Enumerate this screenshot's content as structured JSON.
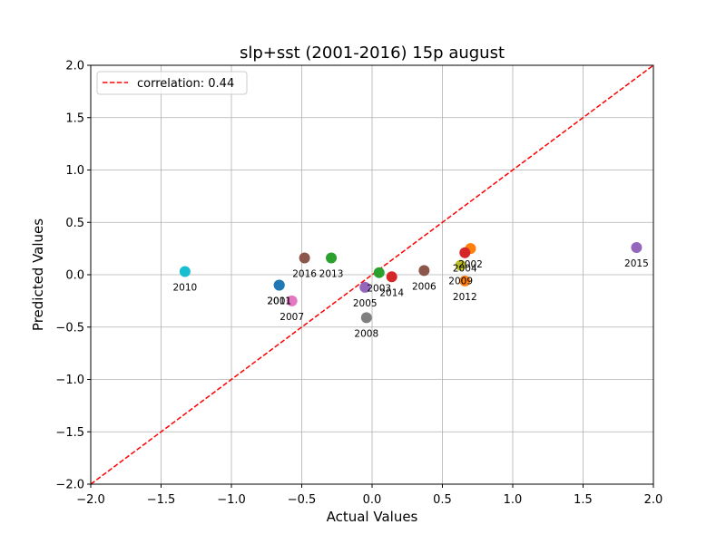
{
  "chart_data": {
    "type": "scatter",
    "title": "slp+sst (2001-2016) 15p august",
    "xlabel": "Actual Values",
    "ylabel": "Predicted Values",
    "xlim": [
      -2.0,
      2.0
    ],
    "ylim": [
      -2.0,
      2.0
    ],
    "xticks": [
      "−2.0",
      "−1.5",
      "−1.0",
      "−0.5",
      "0.0",
      "0.5",
      "1.0",
      "1.5",
      "2.0"
    ],
    "yticks": [
      "−2.0",
      "−1.5",
      "−1.0",
      "−0.5",
      "0.0",
      "0.5",
      "1.0",
      "1.5",
      "2.0"
    ],
    "xtick_values": [
      -2.0,
      -1.5,
      -1.0,
      -0.5,
      0.0,
      0.5,
      1.0,
      1.5,
      2.0
    ],
    "ytick_values": [
      -2.0,
      -1.5,
      -1.0,
      -0.5,
      0.0,
      0.5,
      1.0,
      1.5,
      2.0
    ],
    "grid": true,
    "legend_position": "upper-left",
    "legend": [
      {
        "label": "correlation: 0.44",
        "color": "#ff0000",
        "style": "dashed"
      }
    ],
    "reference_line": {
      "x": [
        -2.0,
        2.0
      ],
      "y": [
        -2.0,
        2.0
      ],
      "color": "#ff0000",
      "style": "dashed"
    },
    "points": [
      {
        "label": "2001",
        "x": -0.66,
        "y": -0.1,
        "color": "#1f77b4"
      },
      {
        "label": "2002",
        "x": 0.7,
        "y": 0.25,
        "color": "#ff7f0e"
      },
      {
        "label": "2003",
        "x": 0.05,
        "y": 0.02,
        "color": "#2ca02c"
      },
      {
        "label": "2004",
        "x": 0.66,
        "y": 0.21,
        "color": "#d62728"
      },
      {
        "label": "2005",
        "x": -0.05,
        "y": -0.12,
        "color": "#9467bd"
      },
      {
        "label": "2006",
        "x": 0.37,
        "y": 0.04,
        "color": "#8c564b"
      },
      {
        "label": "2007",
        "x": -0.57,
        "y": -0.25,
        "color": "#e377c2"
      },
      {
        "label": "2008",
        "x": -0.04,
        "y": -0.41,
        "color": "#7f7f7f"
      },
      {
        "label": "2009",
        "x": 0.63,
        "y": 0.09,
        "color": "#bcbd22"
      },
      {
        "label": "2010",
        "x": -1.33,
        "y": 0.03,
        "color": "#17becf"
      },
      {
        "label": "2011",
        "x": -0.66,
        "y": -0.1,
        "color": "#1f77b4"
      },
      {
        "label": "2012",
        "x": 0.66,
        "y": -0.06,
        "color": "#ff7f0e"
      },
      {
        "label": "2013",
        "x": -0.29,
        "y": 0.16,
        "color": "#2ca02c"
      },
      {
        "label": "2014",
        "x": 0.14,
        "y": -0.02,
        "color": "#d62728"
      },
      {
        "label": "2015",
        "x": 1.88,
        "y": 0.26,
        "color": "#9467bd"
      },
      {
        "label": "2016",
        "x": -0.48,
        "y": 0.16,
        "color": "#8c564b"
      }
    ]
  }
}
